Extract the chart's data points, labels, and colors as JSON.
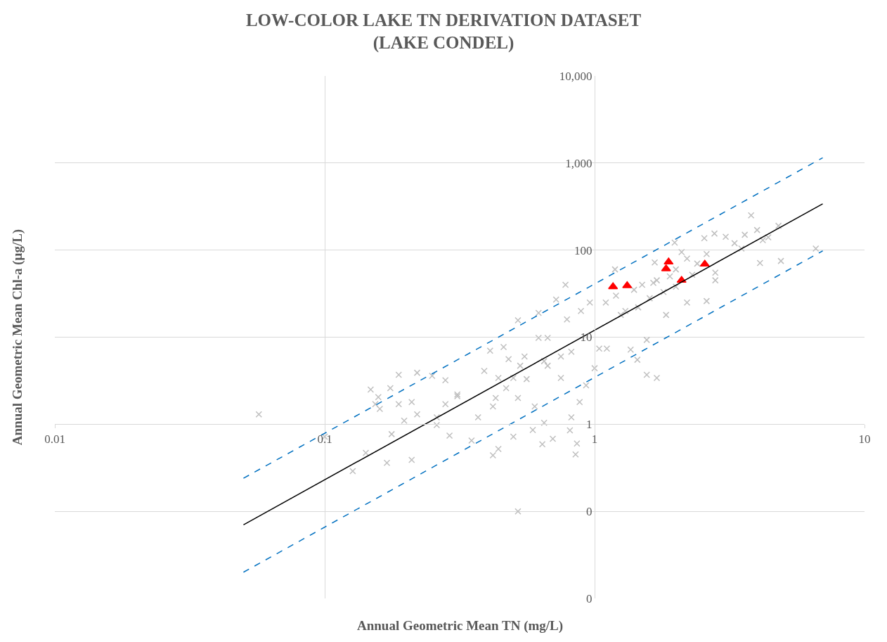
{
  "chart_data": {
    "type": "scatter",
    "title": "LOW-COLOR LAKE TN DERIVATION DATASET\n(LAKE CONDEL)",
    "xlabel": "Annual Geometric Mean TN (mg/L)",
    "ylabel": "Annual Geometric Mean Chl-a (μg/L)",
    "log": "xy",
    "grid": true,
    "xlim": [
      0.01,
      10
    ],
    "xticks": [
      0.01,
      0.1,
      1,
      10
    ],
    "ylim": [
      0.01,
      10000
    ],
    "yticks": [
      {
        "value": 0.01,
        "label": "0"
      },
      {
        "value": 0.1,
        "label": "0"
      },
      1,
      10,
      100,
      {
        "value": 1000,
        "label": "1,000"
      },
      {
        "value": 10000,
        "label": "10,000"
      }
    ],
    "series": [
      {
        "marker": "cross",
        "color": "#bfbfbf",
        "x": [
          0.057,
          0.52,
          6.6,
          3.8,
          3.3,
          3.6,
          4.0,
          4.4,
          4.8,
          3.5,
          4.2,
          4.9,
          4.1,
          2.8,
          2.6,
          2.2,
          1.84,
          1.56,
          1.36,
          1.44,
          1.56,
          1.7,
          1.11,
          1.98,
          2.55,
          2.78,
          3.06,
          2.0,
          2.2,
          2.4,
          2.6,
          2.8,
          2.3,
          2.1,
          1.1,
          1.2,
          1.3,
          1.4,
          1.5,
          1.6,
          1.7,
          1.8,
          1.9,
          2.0,
          1.25,
          1.45,
          1.65,
          1.19,
          1.67,
          0.78,
          0.52,
          0.41,
          0.46,
          0.39,
          0.31,
          0.35,
          0.42,
          0.44,
          0.5,
          0.59,
          0.64,
          0.7,
          0.81,
          0.86,
          0.85,
          0.82,
          0.88,
          0.65,
          0.6,
          0.75,
          0.93,
          1.0,
          1.04,
          0.62,
          0.72,
          0.62,
          0.67,
          0.82,
          0.79,
          0.89,
          0.96,
          0.53,
          0.5,
          0.56,
          0.47,
          0.43,
          0.52,
          0.42,
          0.37,
          0.67,
          0.75,
          0.65,
          0.55,
          0.48,
          0.44,
          0.188,
          0.22,
          0.148,
          0.158,
          0.154,
          0.16,
          0.175,
          0.188,
          0.21,
          0.28,
          0.25,
          0.197,
          0.177,
          0.142,
          0.127,
          0.17,
          0.21,
          0.1,
          0.22,
          0.26,
          0.29,
          0.31,
          0.28,
          0.26
        ],
        "values": [
          1.3,
          0.1,
          104,
          251,
          120,
          150,
          170,
          140,
          190,
          104,
          130,
          75,
          71,
          45,
          26,
          25,
          18,
          9.3,
          7.2,
          5.5,
          3.7,
          3.4,
          7.4,
          122,
          137,
          155,
          142,
          60,
          80,
          70,
          90,
          55,
          52,
          95,
          25,
          30,
          20,
          35,
          40,
          28,
          45,
          33,
          50,
          38,
          18,
          22,
          42,
          60,
          72,
          40,
          15.6,
          7.0,
          7.7,
          4.1,
          2.2,
          0.65,
          0.44,
          0.52,
          0.72,
          0.86,
          0.59,
          0.68,
          0.85,
          0.6,
          0.45,
          1.2,
          1.8,
          1.04,
          1.6,
          3.4,
          2.8,
          4.4,
          7.4,
          19,
          27,
          9.8,
          9.8,
          6.8,
          16,
          20,
          25,
          4.7,
          3.4,
          3.3,
          2.6,
          2.0,
          2.0,
          1.6,
          1.2,
          4.7,
          6.0,
          5.3,
          6.0,
          5.6,
          3.4,
          3.7,
          3.9,
          2.5,
          2.05,
          1.7,
          1.5,
          2.6,
          1.7,
          1.8,
          3.2,
          3.6,
          1.1,
          0.77,
          0.47,
          0.29,
          0.36,
          0.39,
          0.72,
          1.3,
          1.2,
          0.74,
          2.1,
          1.7,
          0.98
        ]
      },
      {
        "marker": "triangle",
        "color": "#ff0000",
        "x": [
          1.17,
          1.32,
          1.84,
          1.88,
          2.1,
          2.56
        ],
        "values": [
          38,
          39,
          61,
          73,
          45,
          69
        ]
      },
      {
        "type": "line",
        "color": "#000000",
        "line_style": "solid",
        "marker": "none",
        "x": [
          0.05,
          7
        ],
        "values": [
          0.07,
          340
        ]
      },
      {
        "type": "line",
        "color": "#0070c0",
        "line_style": "dashed",
        "marker": "none",
        "x": [
          0.05,
          7
        ],
        "values": [
          0.24,
          1150
        ]
      },
      {
        "type": "line",
        "color": "#0070c0",
        "line_style": "dashed",
        "marker": "none",
        "x": [
          0.05,
          7
        ],
        "values": [
          0.02,
          98
        ]
      }
    ]
  }
}
